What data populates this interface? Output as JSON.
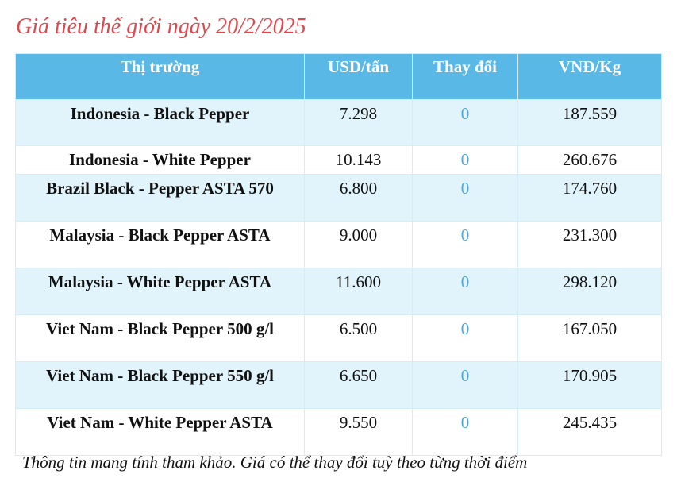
{
  "title": "Giá tiêu thế giới ngày 20/2/2025",
  "table": {
    "header": [
      "Thị trường",
      "USD/tấn",
      "Thay đổi",
      "VNĐ/Kg"
    ],
    "rows": [
      [
        "Indonesia - Black Pepper",
        "7.298",
        "0",
        "187.559"
      ],
      [
        "Indonesia - White Pepper",
        "10.143",
        "0",
        "260.676"
      ],
      [
        "Brazil Black - Pepper ASTA 570",
        "6.800",
        "0",
        "174.760"
      ],
      [
        "Malaysia - Black Pepper ASTA",
        "9.000",
        "0",
        "231.300"
      ],
      [
        "Malaysia - White Pepper ASTA",
        "11.600",
        "0",
        "298.120"
      ],
      [
        "Viet Nam - Black Pepper 500 g/l",
        "6.500",
        "0",
        "167.050"
      ],
      [
        "Viet Nam - Black Pepper 550 g/l",
        "6.650",
        "0",
        "170.905"
      ],
      [
        "Viet Nam - White Pepper ASTA",
        "9.550",
        "0",
        "245.435"
      ]
    ]
  },
  "footnote": "Thông tin mang tính tham khảo. Giá có thể thay đổi tuỳ theo từng thời điểm"
}
